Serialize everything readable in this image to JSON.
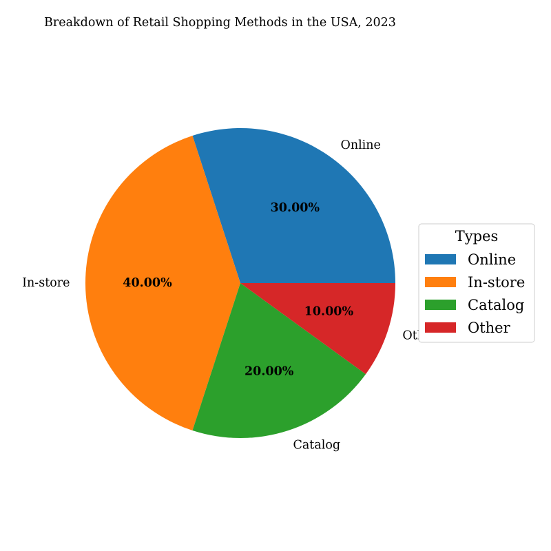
{
  "chart_data": {
    "type": "pie",
    "title": "Breakdown of Retail Shopping Methods in the USA, 2023",
    "categories": [
      "Online",
      "In-store",
      "Catalog",
      "Other"
    ],
    "values": [
      30,
      40,
      20,
      10
    ],
    "percent_labels": [
      "30.00%",
      "40.00%",
      "20.00%",
      "10.00%"
    ],
    "colors": [
      "#1f77b4",
      "#ff7f0e",
      "#2ca02c",
      "#d62728"
    ],
    "legend": {
      "title": "Types",
      "placement": "center-right",
      "entries": [
        "Online",
        "In-store",
        "Catalog",
        "Other"
      ]
    }
  }
}
